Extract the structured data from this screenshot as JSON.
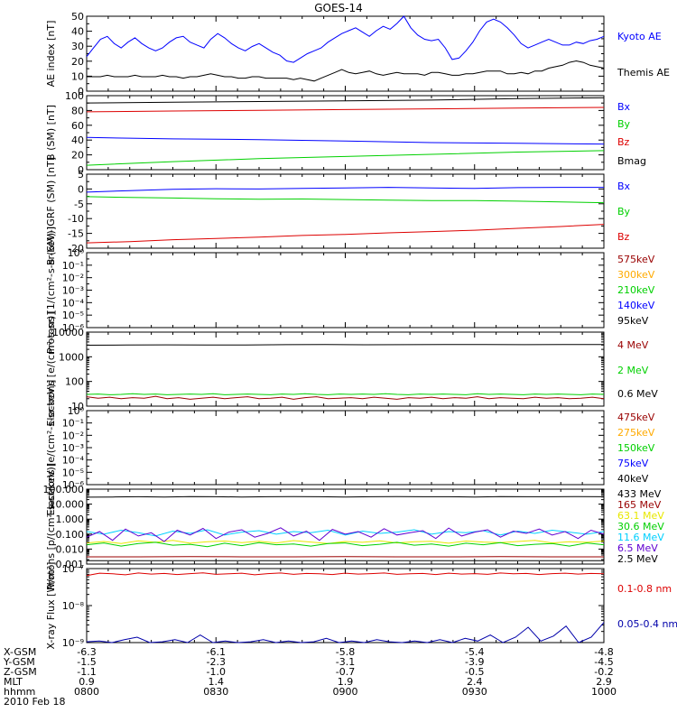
{
  "title": "GOES-14",
  "colors": {
    "black": "#000000",
    "blue": "#0000ff",
    "red": "#dd0000",
    "green": "#00d000",
    "orange": "#ffaa00",
    "cyan": "#00d0ff",
    "yellow": "#e8e800",
    "darkred": "#990000",
    "purple": "#6000d0",
    "navy": "#0000aa"
  },
  "footer": {
    "rows": [
      {
        "label": "X-GSM",
        "values": [
          "-6.3",
          "-6.1",
          "-5.8",
          "-5.4",
          "-4.8"
        ]
      },
      {
        "label": "Y-GSM",
        "values": [
          "-1.5",
          "-2.3",
          "-3.1",
          "-3.9",
          "-4.5"
        ]
      },
      {
        "label": "Z-GSM",
        "values": [
          "-1.1",
          "-1.0",
          "-0.7",
          "-0.5",
          "-0.2"
        ]
      },
      {
        "label": "MLT",
        "values": [
          "0.9",
          "1.4",
          "1.9",
          "2.4",
          "2.9"
        ]
      },
      {
        "label": "hhmm",
        "values": [
          "0800",
          "0830",
          "0900",
          "0930",
          "1000"
        ]
      }
    ],
    "date": "2010 Feb 18"
  },
  "chart_data": [
    {
      "type": "line",
      "ylabel": "AE index [nT]",
      "yticks": [
        "0",
        "10",
        "20",
        "30",
        "40",
        "50"
      ],
      "ylim": [
        0,
        52
      ],
      "xlim": [
        0,
        120
      ],
      "series": [
        {
          "name": "Kyoto AE",
          "color": "blue",
          "values": [
            24,
            30,
            36,
            38,
            33,
            30,
            34,
            37,
            33,
            30,
            28,
            30,
            34,
            37,
            38,
            34,
            32,
            30,
            36,
            40,
            37,
            33,
            30,
            28,
            31,
            33,
            30,
            27,
            25,
            21,
            20,
            23,
            26,
            28,
            30,
            34,
            37,
            40,
            42,
            44,
            41,
            38,
            42,
            45,
            43,
            47,
            52,
            44,
            39,
            36,
            35,
            36,
            30,
            22,
            23,
            28,
            34,
            42,
            48,
            50,
            48,
            44,
            39,
            33,
            30,
            32,
            34,
            36,
            34,
            32,
            32,
            34,
            33,
            35,
            36,
            38
          ]
        },
        {
          "name": "Themis AE",
          "color": "black",
          "values": [
            10,
            10,
            10,
            11,
            10,
            10,
            10,
            11,
            10,
            10,
            10,
            11,
            10,
            10,
            9,
            10,
            10,
            11,
            12,
            11,
            10,
            10,
            9,
            9,
            10,
            10,
            9,
            9,
            9,
            9,
            8,
            9,
            8,
            7,
            9,
            11,
            13,
            15,
            13,
            12,
            13,
            14,
            12,
            11,
            12,
            13,
            12,
            12,
            12,
            11,
            13,
            13,
            12,
            11,
            11,
            12,
            12,
            13,
            14,
            14,
            14,
            12,
            12,
            13,
            12,
            14,
            14,
            16,
            17,
            18,
            20,
            21,
            20,
            18,
            17,
            16
          ]
        }
      ]
    },
    {
      "type": "line",
      "ylabel": "B (SM) [nT]",
      "yticks": [
        "0",
        "20",
        "40",
        "60",
        "80",
        "100"
      ],
      "ylim": [
        -1,
        100
      ],
      "series": [
        {
          "name": "Bx",
          "color": "blue",
          "values": [
            43,
            41,
            40,
            38,
            36,
            35,
            34
          ]
        },
        {
          "name": "By",
          "color": "green",
          "values": [
            5,
            10,
            14,
            17,
            20,
            23,
            25
          ]
        },
        {
          "name": "Bz",
          "color": "red",
          "values": [
            78,
            79,
            80,
            81,
            82,
            83,
            84
          ]
        },
        {
          "name": "Bmag",
          "color": "black",
          "values": [
            90,
            91,
            92,
            93,
            94,
            96,
            97
          ]
        }
      ]
    },
    {
      "type": "line",
      "ylabel": "B (SM)-IGRF (SM) [nT]",
      "yticks": [
        "-20",
        "-15",
        "-10",
        "-5",
        "0",
        "5"
      ],
      "ylim": [
        -21,
        7
      ],
      "series": [
        {
          "name": "Bx",
          "color": "blue",
          "values": [
            0.2,
            0.8,
            1.3,
            1.5,
            1.4,
            1.6,
            1.8,
            2.0,
            1.8,
            1.6,
            1.9,
            2.0,
            2.0
          ]
        },
        {
          "name": "By",
          "color": "green",
          "values": [
            -1.5,
            -1.8,
            -2.0,
            -2.3,
            -2.5,
            -2.4,
            -2.6,
            -2.8,
            -3.0,
            -3.0,
            -3.2,
            -3.5,
            -3.8
          ]
        },
        {
          "name": "Bz",
          "color": "red",
          "values": [
            -19,
            -18.5,
            -17.8,
            -17.3,
            -16.8,
            -16.2,
            -15.8,
            -15.2,
            -14.7,
            -14.2,
            -13.5,
            -12.8,
            -12.0
          ]
        }
      ]
    },
    {
      "type": "line",
      "ylabel": "Protons [1/(cm²-s-sr-keV)]",
      "yticks": [
        "10⁻⁶",
        "10⁻⁵",
        "10⁻⁴",
        "10⁻³",
        "10⁻²",
        "10⁻¹",
        "10⁰"
      ],
      "series": [
        {
          "name": "575keV",
          "color": "darkred",
          "values": []
        },
        {
          "name": "300keV",
          "color": "orange",
          "values": []
        },
        {
          "name": "210keV",
          "color": "green",
          "values": []
        },
        {
          "name": "140keV",
          "color": "blue",
          "values": []
        },
        {
          "name": "95keV",
          "color": "black",
          "values": []
        }
      ]
    },
    {
      "type": "line",
      "ylabel": "Electrons [e/(cm²-s-sr)]",
      "yticks": [
        "10",
        "100",
        "1000",
        "10000"
      ],
      "ylim": [
        10,
        10000
      ],
      "scale": "log",
      "series": [
        {
          "name": "4 MeV",
          "color": "darkred",
          "values": [
            24,
            21,
            23,
            20,
            22,
            21,
            25,
            20,
            22,
            19,
            21,
            23,
            20,
            22,
            24,
            20,
            21,
            23,
            19,
            22,
            24,
            20,
            21,
            22,
            20,
            23,
            21,
            19,
            22,
            21,
            23,
            20,
            22,
            21,
            24,
            20,
            22,
            21,
            20,
            23,
            21,
            22,
            20,
            21,
            23,
            20
          ]
        },
        {
          "name": "2 MeV",
          "color": "green",
          "values": [
            30,
            31,
            29,
            30,
            32,
            30,
            31,
            29,
            30,
            31,
            30,
            32,
            29,
            30,
            31,
            30,
            29,
            31,
            30,
            32,
            30,
            29,
            31,
            30,
            31,
            30,
            32,
            30,
            29,
            31,
            30,
            31,
            30,
            29,
            32,
            30,
            31,
            30,
            29,
            31,
            30,
            31,
            30,
            29,
            31,
            30
          ]
        },
        {
          "name": "0.6 MeV",
          "color": "black",
          "values": [
            2950,
            3000,
            3050,
            3020,
            3000,
            3100,
            3120,
            3080,
            3100,
            3150,
            3120,
            3100,
            3130,
            3150
          ]
        }
      ]
    },
    {
      "type": "line",
      "ylabel": "Electrons [e/(cm²-s-sr-keV)]",
      "yticks": [
        "10⁻⁶",
        "10⁻⁵",
        "10⁻⁴",
        "10⁻³",
        "10⁻²",
        "10⁻¹",
        "10⁰"
      ],
      "series": [
        {
          "name": "475keV",
          "color": "darkred",
          "values": []
        },
        {
          "name": "275keV",
          "color": "orange",
          "values": []
        },
        {
          "name": "150keV",
          "color": "green",
          "values": []
        },
        {
          "name": "75keV",
          "color": "blue",
          "values": []
        },
        {
          "name": "40keV",
          "color": "black",
          "values": []
        }
      ]
    },
    {
      "type": "line",
      "ylabel": "Protons [p/(cm²-s-sr-keV)]",
      "yticks": [
        "0.001",
        "0.010",
        "0.100",
        "1.000",
        "10.000",
        "100.000"
      ],
      "ylim": [
        0.0007,
        100
      ],
      "scale": "log",
      "series": [
        {
          "name": "433 MeV",
          "color": "black",
          "values": [
            28,
            29,
            30,
            29,
            31,
            30,
            29,
            30,
            31,
            30,
            29,
            30,
            31,
            30,
            30,
            29,
            31,
            30,
            30,
            31,
            30
          ]
        },
        {
          "name": "165 MeV",
          "color": "darkred",
          "values": [
            0.0022,
            0.0022,
            0.0023,
            0.0022,
            0.0022,
            0.0023,
            0.0022,
            0.0022,
            0.0023,
            0.0022,
            0.0022
          ]
        },
        {
          "name": "63.1 MeV",
          "color": "yellow",
          "values": [
            0.02,
            0.025,
            0.018,
            0.028,
            0.022,
            0.03,
            0.019,
            0.024,
            0.027,
            0.021,
            0.026,
            0.02,
            0.029,
            0.023,
            0.018,
            0.025,
            0.022,
            0.028,
            0.02,
            0.024,
            0.026,
            0.019,
            0.027,
            0.023,
            0.021,
            0.025,
            0.03,
            0.02,
            0.024,
            0.022,
            0.027
          ]
        },
        {
          "name": "30.6 MeV",
          "color": "green",
          "values": [
            0.015,
            0.02,
            0.012,
            0.018,
            0.022,
            0.014,
            0.016,
            0.011,
            0.019,
            0.013,
            0.021,
            0.015,
            0.017,
            0.012,
            0.018,
            0.02,
            0.013,
            0.016,
            0.022,
            0.014,
            0.017,
            0.012,
            0.019,
            0.015,
            0.021,
            0.013,
            0.016,
            0.018,
            0.012,
            0.02,
            0.015
          ]
        },
        {
          "name": "11.6 MeV",
          "color": "cyan",
          "values": [
            0.12,
            0.08,
            0.15,
            0.1,
            0.06,
            0.13,
            0.09,
            0.16,
            0.07,
            0.11,
            0.14,
            0.08,
            0.12,
            0.1,
            0.15,
            0.07,
            0.13,
            0.09,
            0.11,
            0.16,
            0.08,
            0.12,
            0.1,
            0.14,
            0.07,
            0.13,
            0.09,
            0.15,
            0.11,
            0.08,
            0.12
          ]
        },
        {
          "name": "6.5 MeV",
          "color": "purple",
          "values": [
            0.05,
            0.12,
            0.03,
            0.18,
            0.06,
            0.1,
            0.025,
            0.15,
            0.07,
            0.2,
            0.04,
            0.11,
            0.16,
            0.05,
            0.09,
            0.22,
            0.06,
            0.13,
            0.03,
            0.17,
            0.08,
            0.12,
            0.05,
            0.19,
            0.07,
            0.1,
            0.14,
            0.04,
            0.21,
            0.06,
            0.11,
            0.16,
            0.05,
            0.13,
            0.09,
            0.18,
            0.07,
            0.12,
            0.04,
            0.15,
            0.08
          ]
        },
        {
          "name": "2.5 MeV",
          "color": "black",
          "values": [
            0.0012,
            0.0012,
            0.0012,
            0.0012,
            0.0012
          ]
        }
      ]
    },
    {
      "type": "line",
      "ylabel": "X-ray Flux [W/m²]",
      "yticks": [
        "10⁻⁹",
        "10⁻⁸",
        "10⁻⁷"
      ],
      "ylim": [
        1e-09,
        1e-07
      ],
      "scale": "log",
      "series": [
        {
          "name": "0.1-0.8 nm",
          "color": "red",
          "values": [
            6.5e-08,
            7.5e-08,
            7.2e-08,
            6.8e-08,
            7.6e-08,
            7.1e-08,
            7.4e-08,
            6.9e-08,
            7.3e-08,
            7.7e-08,
            7e-08,
            7.2e-08,
            7.5e-08,
            6.8e-08,
            7.3e-08,
            7.6e-08,
            7e-08,
            7.4e-08,
            7.2e-08,
            6.9e-08,
            7.5e-08,
            7.1e-08,
            7.3e-08,
            7.6e-08,
            7e-08,
            7.2e-08,
            7.4e-08,
            6.9e-08,
            7.5e-08,
            7.1e-08,
            7.3e-08,
            7e-08,
            7.6e-08,
            7.2e-08,
            7.4e-08,
            6.9e-08,
            7.3e-08,
            7.5e-08,
            7.1e-08,
            7.4e-08,
            7.2e-08
          ]
        },
        {
          "name": "0.05-0.4 nm",
          "color": "navy",
          "values": [
            1.05e-09,
            1.1e-09,
            1e-09,
            1.2e-09,
            1.4e-09,
            1e-09,
            1.05e-09,
            1.2e-09,
            1e-09,
            1.6e-09,
            1e-09,
            1.1e-09,
            1e-09,
            1.05e-09,
            1.2e-09,
            1e-09,
            1.1e-09,
            1e-09,
            1.05e-09,
            1.3e-09,
            1e-09,
            1.1e-09,
            1e-09,
            1.2e-09,
            1.05e-09,
            1e-09,
            1.1e-09,
            1e-09,
            1.2e-09,
            1e-09,
            1.3e-09,
            1.1e-09,
            1.6e-09,
            1e-09,
            1.4e-09,
            2.6e-09,
            1.1e-09,
            1.5e-09,
            2.8e-09,
            1e-09,
            1.4e-09,
            3.5e-09
          ]
        }
      ]
    }
  ]
}
